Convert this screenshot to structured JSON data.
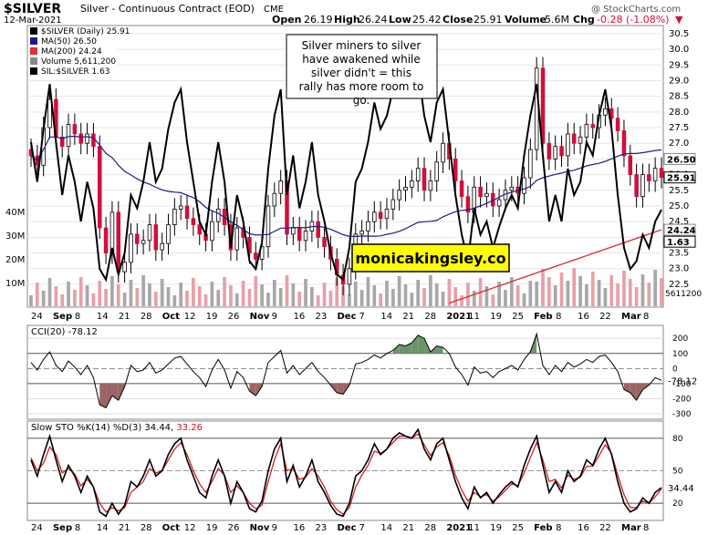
{
  "header": {
    "symbol": "$SILVER",
    "name": "Silver - Continuous Contract (EOD)",
    "exchange": "CME",
    "date": "12-Mar-2021",
    "watermark": "@ StockCharts.com",
    "open_label": "Open",
    "open": "26.19",
    "high_label": "High",
    "high": "26.24",
    "low_label": "Low",
    "low": "25.42",
    "close_label": "Close",
    "close": "25.91",
    "volume_label": "Volume",
    "volume": "5.6M",
    "chg_label": "Chg",
    "chg": "-0.28 (-1.08%)"
  },
  "legend": [
    {
      "text": "$SILVER (Daily) 25.91",
      "color": "#000000"
    },
    {
      "text": "MA(50) 26.50",
      "color": "#1c1c8c"
    },
    {
      "text": "MA(200) 24.24",
      "color": "#d8323c"
    },
    {
      "text": "Volume 5,611,200",
      "color": "#888888"
    },
    {
      "text": "SIL:$SILVER 1.63",
      "color": "#000000"
    }
  ],
  "annotation": "Silver miners to silver have awakened while silver didn't = this rally has more room to go.",
  "brand_box": "monicakingsley.co",
  "colors": {
    "up": "#ffffff",
    "down": "#d10f3c",
    "ma50": "#1c1c8c",
    "ma200": "#d8323c",
    "vol_up": "#a8a8a8",
    "vol_down": "#e8a0a8",
    "cci_fill": "#6b946b",
    "cci_fill_neg": "#9c6464",
    "box_yellow": "#ffff00",
    "stoch_d": "#d0101c"
  },
  "x_axis": {
    "labels": [
      "24",
      "Sep",
      "8",
      "14",
      "21",
      "28",
      "Oct",
      "12",
      "19",
      "26",
      "Nov",
      "9",
      "16",
      "23",
      "Dec",
      "7",
      "14",
      "21",
      "28",
      "2021",
      "11",
      "19",
      "25",
      "Feb",
      "8",
      "16",
      "22",
      "Mar",
      "8"
    ],
    "bold": [
      "Sep",
      "Oct",
      "Nov",
      "Dec",
      "2021",
      "Feb",
      "Mar"
    ]
  },
  "chart_data": [
    {
      "type": "candlestick",
      "title": "$SILVER Silver - Continuous Contract (EOD)",
      "y_ticks": [
        "22.5",
        "23.0",
        "23.5",
        "24.0",
        "24.5",
        "25.0",
        "25.5",
        "26.0",
        "26.5",
        "27.0",
        "27.5",
        "28.0",
        "28.5",
        "29.0",
        "29.5",
        "30.0",
        "30.5"
      ],
      "ylim": [
        21.8,
        30.7
      ],
      "last_close": 25.91,
      "ma50_last": 26.5,
      "ma200_last": 24.24,
      "closes": [
        26.6,
        26.3,
        27.5,
        28.4,
        27.2,
        26.9,
        27.6,
        27.3,
        27.0,
        27.3,
        26.9,
        24.3,
        23.5,
        24.8,
        22.9,
        23.2,
        24.1,
        23.8,
        23.9,
        24.4,
        23.6,
        23.8,
        24.4,
        24.9,
        25.0,
        24.6,
        24.4,
        24.1,
        23.9,
        24.5,
        24.9,
        24.4,
        23.6,
        24.3,
        24.0,
        23.5,
        23.3,
        23.7,
        25.0,
        25.4,
        25.8,
        24.1,
        24.3,
        23.9,
        24.2,
        24.5,
        24.0,
        23.7,
        23.3,
        22.8,
        22.5,
        23.0,
        24.1,
        24.2,
        24.5,
        24.8,
        24.6,
        24.9,
        25.2,
        25.5,
        25.6,
        25.8,
        26.2,
        25.5,
        25.8,
        26.4,
        27.0,
        26.5,
        25.8,
        25.3,
        24.8,
        25.6,
        25.3,
        25.4,
        25.0,
        25.2,
        25.5,
        25.6,
        25.4,
        25.9,
        26.8,
        29.4,
        27.0,
        26.5,
        26.9,
        26.6,
        27.3,
        27.0,
        27.2,
        27.6,
        27.5,
        27.9,
        28.1,
        27.8,
        27.4,
        26.6,
        26.0,
        25.3,
        26.0,
        25.8,
        26.2,
        25.91
      ],
      "volume_ticks": [
        "10M",
        "20M",
        "30M",
        "40M"
      ],
      "volume_label_last": "5611200"
    },
    {
      "type": "line",
      "title": "SIL:$SILVER",
      "last": 1.63
    },
    {
      "type": "line",
      "title": "CCI(20) -78.12",
      "y_ticks": [
        "200",
        "100",
        "0",
        "-100",
        "-200",
        "-300"
      ],
      "ylim": [
        -330,
        280
      ],
      "last": -78.12,
      "values": [
        40,
        -10,
        60,
        110,
        20,
        -20,
        50,
        10,
        -40,
        20,
        -60,
        -240,
        -260,
        -180,
        -210,
        -120,
        20,
        -20,
        -10,
        40,
        -30,
        -10,
        30,
        70,
        80,
        30,
        -20,
        -60,
        -120,
        -10,
        60,
        -10,
        -130,
        -20,
        -60,
        -150,
        -180,
        -120,
        40,
        80,
        120,
        -30,
        20,
        -40,
        0,
        40,
        -20,
        -60,
        -110,
        -160,
        -170,
        -110,
        30,
        40,
        60,
        90,
        70,
        100,
        120,
        160,
        150,
        170,
        220,
        200,
        110,
        150,
        140,
        100,
        10,
        -40,
        -110,
        10,
        -30,
        -20,
        -60,
        -20,
        0,
        20,
        -10,
        60,
        110,
        230,
        20,
        -40,
        20,
        -20,
        40,
        10,
        30,
        60,
        40,
        80,
        90,
        40,
        -20,
        -140,
        -160,
        -210,
        -140,
        -110,
        -60,
        -78
      ]
    },
    {
      "type": "line",
      "title": "Slow STO %K(14) %D(3) 34.44, 33.26",
      "y_ticks": [
        "80",
        "50",
        "20"
      ],
      "ylim": [
        5,
        95
      ],
      "last_k": 34.44,
      "last_d": 33.26,
      "k": [
        60,
        45,
        65,
        82,
        60,
        40,
        55,
        45,
        30,
        45,
        35,
        12,
        8,
        20,
        10,
        18,
        40,
        35,
        45,
        60,
        45,
        50,
        65,
        75,
        80,
        60,
        45,
        30,
        25,
        45,
        60,
        45,
        20,
        40,
        30,
        15,
        12,
        22,
        50,
        70,
        80,
        40,
        55,
        35,
        45,
        60,
        40,
        30,
        18,
        10,
        8,
        20,
        45,
        50,
        60,
        75,
        65,
        70,
        80,
        85,
        82,
        80,
        88,
        70,
        60,
        75,
        80,
        60,
        40,
        25,
        15,
        35,
        25,
        30,
        20,
        28,
        35,
        40,
        35,
        55,
        70,
        82,
        55,
        30,
        40,
        30,
        50,
        40,
        45,
        60,
        55,
        70,
        80,
        65,
        40,
        20,
        12,
        15,
        25,
        20,
        30,
        34.44
      ],
      "d": [
        62,
        50,
        57,
        72,
        65,
        48,
        52,
        47,
        36,
        42,
        35,
        20,
        12,
        16,
        13,
        16,
        30,
        35,
        40,
        52,
        48,
        50,
        60,
        70,
        76,
        65,
        50,
        38,
        30,
        40,
        52,
        46,
        30,
        36,
        30,
        20,
        15,
        18,
        40,
        60,
        75,
        50,
        52,
        42,
        44,
        52,
        45,
        35,
        22,
        14,
        10,
        16,
        35,
        46,
        55,
        68,
        66,
        70,
        76,
        82,
        82,
        80,
        84,
        74,
        64,
        72,
        76,
        64,
        46,
        32,
        22,
        30,
        26,
        28,
        22,
        26,
        32,
        38,
        36,
        48,
        62,
        76,
        60,
        40,
        42,
        34,
        46,
        42,
        44,
        54,
        54,
        64,
        74,
        66,
        46,
        28,
        16,
        16,
        22,
        20,
        26,
        33.26
      ]
    }
  ]
}
